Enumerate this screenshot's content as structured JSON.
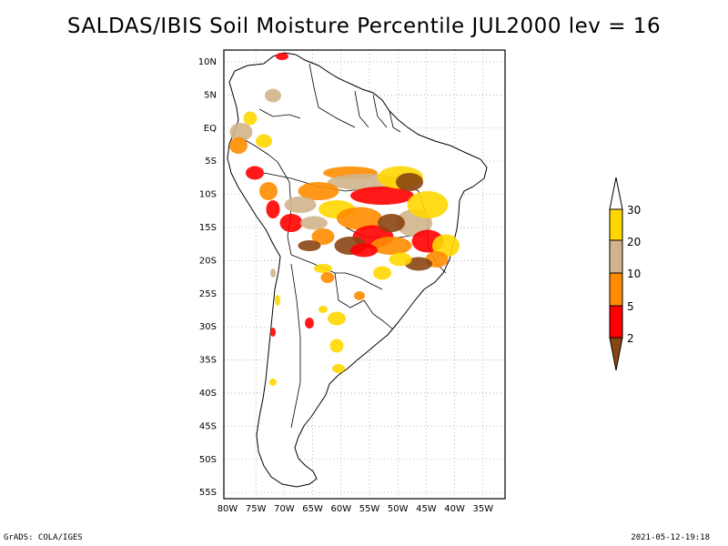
{
  "title": "SALDAS/IBIS Soil Moisture Percentile JUL2000 lev = 16",
  "map": {
    "lat_ticks": [
      "10N",
      "5N",
      "EQ",
      "5S",
      "10S",
      "15S",
      "20S",
      "25S",
      "30S",
      "35S",
      "40S",
      "45S",
      "50S",
      "55S"
    ],
    "lon_ticks": [
      "80W",
      "75W",
      "70W",
      "65W",
      "60W",
      "55W",
      "50W",
      "45W",
      "40W",
      "35W"
    ],
    "lon_range": [
      -80,
      -35
    ],
    "lat_range": [
      -55,
      10
    ],
    "grid": "dotted",
    "region_icon": "south-america-landmass"
  },
  "legend": {
    "placement": "right",
    "levels": [
      "2",
      "5",
      "10",
      "20",
      "30"
    ],
    "colors": [
      "#8b4513",
      "#ff0000",
      "#ff8c00",
      "#d2b48c",
      "#ffd700",
      "#ffffff"
    ]
  },
  "footer": {
    "left": "GrADS: COLA/IGES",
    "right": "2021-05-12-19:18"
  }
}
